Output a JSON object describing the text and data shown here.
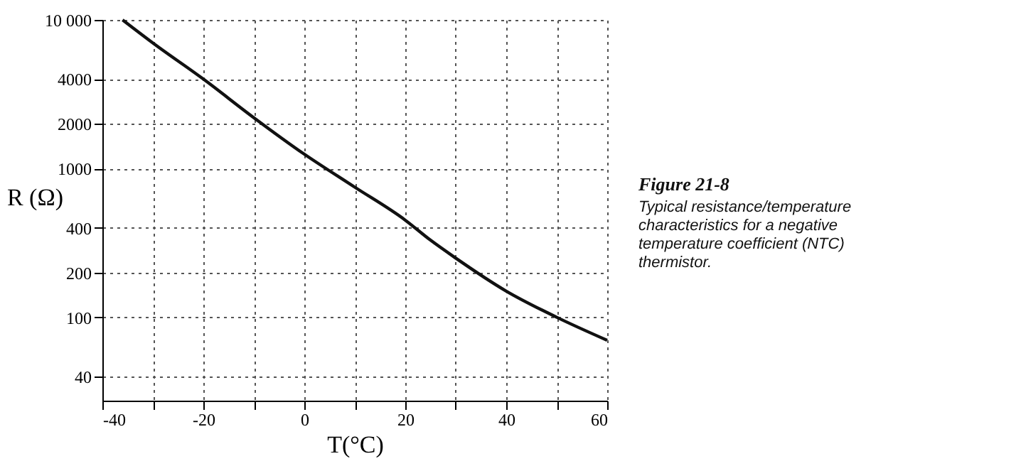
{
  "chart_data": {
    "type": "line",
    "xlabel": "T(°C)",
    "ylabel": "R (Ω)",
    "x": [
      -36,
      -30,
      -20,
      -10,
      0,
      10,
      20,
      25,
      30,
      40,
      50,
      60
    ],
    "series": [
      {
        "color": "#111111",
        "values": [
          10000,
          7000,
          4000,
          2200,
          1250,
          750,
          450,
          330,
          250,
          150,
          100,
          70
        ]
      }
    ],
    "xlim": [
      -40,
      60
    ],
    "xticks": [
      -40,
      {
        "value": -30,
        "label": null
      },
      -20,
      {
        "value": -10,
        "label": null
      },
      0,
      {
        "value": 10,
        "label": null
      },
      20,
      {
        "value": 30,
        "label": null
      },
      40,
      {
        "value": 50,
        "label": null
      },
      60
    ],
    "ylim": [
      27.5,
      10000
    ],
    "yticks": [
      40,
      100,
      200,
      400,
      1000,
      2000,
      4000,
      {
        "value": 10000,
        "label": "10 000"
      }
    ],
    "log": "y",
    "grid": true,
    "line_style": "solid",
    "marker": "none",
    "annotations": [
      "Figure 21-8",
      "Typical resistance/temperature characteristics for a negative temperature coefficient (NTC) thermistor."
    ]
  }
}
